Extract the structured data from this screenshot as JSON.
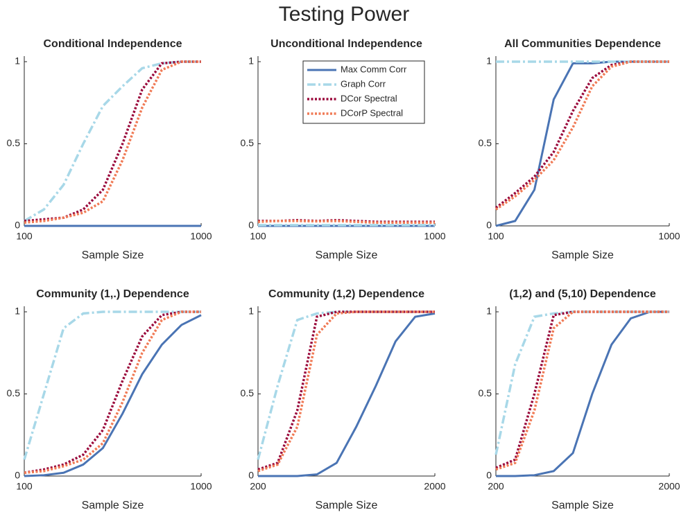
{
  "title": "Testing Power",
  "chart_data": [
    {
      "type": "line",
      "title": "Conditional Independence",
      "xlabel": "Sample Size",
      "x": [
        100,
        200,
        300,
        400,
        500,
        600,
        700,
        800,
        900,
        1000
      ],
      "xlim": [
        100,
        1000
      ],
      "xticks": [
        100,
        1000
      ],
      "ylim": [
        0,
        1
      ],
      "yticks": [
        0,
        0.5,
        1
      ],
      "series": [
        {
          "color": "#4a74b4",
          "style": "solid",
          "values": [
            0,
            0,
            0,
            0,
            0,
            0,
            0,
            0,
            0,
            0
          ]
        },
        {
          "color": "#a8d8e8",
          "style": "dashdot",
          "values": [
            0.03,
            0.1,
            0.25,
            0.5,
            0.73,
            0.85,
            0.96,
            0.99,
            1,
            1
          ]
        },
        {
          "color": "#9b0a3c",
          "style": "dotted",
          "values": [
            0.03,
            0.04,
            0.05,
            0.1,
            0.22,
            0.5,
            0.83,
            0.99,
            1,
            1
          ]
        },
        {
          "color": "#f07a55",
          "style": "dotted",
          "values": [
            0.02,
            0.03,
            0.05,
            0.08,
            0.15,
            0.4,
            0.72,
            0.95,
            1,
            1
          ]
        }
      ]
    },
    {
      "type": "line",
      "title": "Unconditional Independence",
      "xlabel": "Sample Size",
      "x": [
        100,
        200,
        300,
        400,
        500,
        600,
        700,
        800,
        900,
        1000
      ],
      "xlim": [
        100,
        1000
      ],
      "xticks": [
        100,
        1000
      ],
      "ylim": [
        0,
        1
      ],
      "yticks": [
        0,
        0.5,
        1
      ],
      "legend": "upper right",
      "series": [
        {
          "name": "Max Comm Corr",
          "color": "#4a74b4",
          "style": "solid",
          "values": [
            0,
            0,
            0,
            0,
            0,
            0,
            0,
            0,
            0,
            0
          ]
        },
        {
          "name": "Graph Corr",
          "color": "#a8d8e8",
          "style": "dashdot",
          "values": [
            0.005,
            0.005,
            0.005,
            0.005,
            0.005,
            0.005,
            0.005,
            0.005,
            0.005,
            0.005
          ]
        },
        {
          "name": "DCor Spectral",
          "color": "#9b0a3c",
          "style": "dotted",
          "values": [
            0.03,
            0.03,
            0.035,
            0.03,
            0.035,
            0.03,
            0.025,
            0.025,
            0.025,
            0.025
          ]
        },
        {
          "name": "DCorP Spectral",
          "color": "#f07a55",
          "style": "dotted",
          "values": [
            0.025,
            0.03,
            0.03,
            0.028,
            0.03,
            0.025,
            0.02,
            0.02,
            0.02,
            0.02
          ]
        }
      ]
    },
    {
      "type": "line",
      "title": "All Communities Dependence",
      "xlabel": "Sample Size",
      "x": [
        100,
        200,
        300,
        400,
        500,
        600,
        700,
        800,
        900,
        1000
      ],
      "xlim": [
        100,
        1000
      ],
      "xticks": [
        100,
        1000
      ],
      "ylim": [
        0,
        1
      ],
      "yticks": [
        0,
        0.5,
        1
      ],
      "series": [
        {
          "color": "#4a74b4",
          "style": "solid",
          "values": [
            0,
            0.03,
            0.22,
            0.77,
            0.99,
            0.99,
            1,
            1,
            1,
            1
          ]
        },
        {
          "color": "#a8d8e8",
          "style": "dashdot",
          "values": [
            1,
            1,
            1,
            1,
            1,
            1,
            1,
            1,
            1,
            1
          ]
        },
        {
          "color": "#9b0a3c",
          "style": "dotted",
          "values": [
            0.11,
            0.2,
            0.3,
            0.45,
            0.7,
            0.9,
            0.98,
            1,
            1,
            1
          ]
        },
        {
          "color": "#f07a55",
          "style": "dotted",
          "values": [
            0.1,
            0.18,
            0.28,
            0.4,
            0.6,
            0.85,
            0.97,
            1,
            1,
            1
          ]
        }
      ]
    },
    {
      "type": "line",
      "title": "Community (1,.) Dependence",
      "xlabel": "Sample Size",
      "x": [
        100,
        200,
        300,
        400,
        500,
        600,
        700,
        800,
        900,
        1000
      ],
      "xlim": [
        100,
        1000
      ],
      "xticks": [
        100,
        1000
      ],
      "ylim": [
        0,
        1
      ],
      "yticks": [
        0,
        0.5,
        1
      ],
      "series": [
        {
          "color": "#4a74b4",
          "style": "solid",
          "values": [
            0,
            0.005,
            0.02,
            0.07,
            0.17,
            0.38,
            0.62,
            0.8,
            0.92,
            0.98
          ]
        },
        {
          "color": "#a8d8e8",
          "style": "dashdot",
          "values": [
            0.1,
            0.5,
            0.9,
            0.99,
            1,
            1,
            1,
            1,
            1,
            1
          ]
        },
        {
          "color": "#9b0a3c",
          "style": "dotted",
          "values": [
            0.02,
            0.04,
            0.07,
            0.13,
            0.28,
            0.58,
            0.85,
            0.98,
            1,
            1
          ]
        },
        {
          "color": "#f07a55",
          "style": "dotted",
          "values": [
            0.02,
            0.03,
            0.06,
            0.1,
            0.2,
            0.45,
            0.75,
            0.95,
            1,
            1
          ]
        }
      ]
    },
    {
      "type": "line",
      "title": "Community (1,2) Dependence",
      "xlabel": "Sample Size",
      "x": [
        200,
        400,
        600,
        800,
        1000,
        1200,
        1400,
        1600,
        1800,
        2000
      ],
      "xlim": [
        200,
        2000
      ],
      "xticks": [
        200,
        2000
      ],
      "ylim": [
        0,
        1
      ],
      "yticks": [
        0,
        0.5,
        1
      ],
      "series": [
        {
          "color": "#4a74b4",
          "style": "solid",
          "values": [
            0,
            0,
            0,
            0.01,
            0.08,
            0.3,
            0.55,
            0.82,
            0.97,
            0.99
          ]
        },
        {
          "color": "#a8d8e8",
          "style": "dashdot",
          "values": [
            0.1,
            0.55,
            0.95,
            0.99,
            1,
            1,
            1,
            1,
            1,
            1
          ]
        },
        {
          "color": "#9b0a3c",
          "style": "dotted",
          "values": [
            0.04,
            0.08,
            0.4,
            0.97,
            1,
            1,
            1,
            1,
            1,
            1
          ]
        },
        {
          "color": "#f07a55",
          "style": "dotted",
          "values": [
            0.03,
            0.07,
            0.3,
            0.86,
            0.99,
            1,
            1,
            1,
            1,
            1
          ]
        }
      ]
    },
    {
      "type": "line",
      "title": "(1,2) and (5,10) Dependence",
      "xlabel": "Sample Size",
      "x": [
        200,
        400,
        600,
        800,
        1000,
        1200,
        1400,
        1600,
        1800,
        2000
      ],
      "xlim": [
        200,
        2000
      ],
      "xticks": [
        200,
        2000
      ],
      "ylim": [
        0,
        1
      ],
      "yticks": [
        0,
        0.5,
        1
      ],
      "series": [
        {
          "color": "#4a74b4",
          "style": "solid",
          "values": [
            0,
            0,
            0.005,
            0.03,
            0.14,
            0.5,
            0.8,
            0.96,
            1,
            1
          ]
        },
        {
          "color": "#a8d8e8",
          "style": "dashdot",
          "values": [
            0.13,
            0.68,
            0.97,
            0.99,
            1,
            1,
            1,
            1,
            1,
            1
          ]
        },
        {
          "color": "#9b0a3c",
          "style": "dotted",
          "values": [
            0.05,
            0.1,
            0.5,
            0.98,
            1,
            1,
            1,
            1,
            1,
            1
          ]
        },
        {
          "color": "#f07a55",
          "style": "dotted",
          "values": [
            0.04,
            0.08,
            0.4,
            0.9,
            1,
            1,
            1,
            1,
            1,
            1
          ]
        }
      ]
    }
  ]
}
